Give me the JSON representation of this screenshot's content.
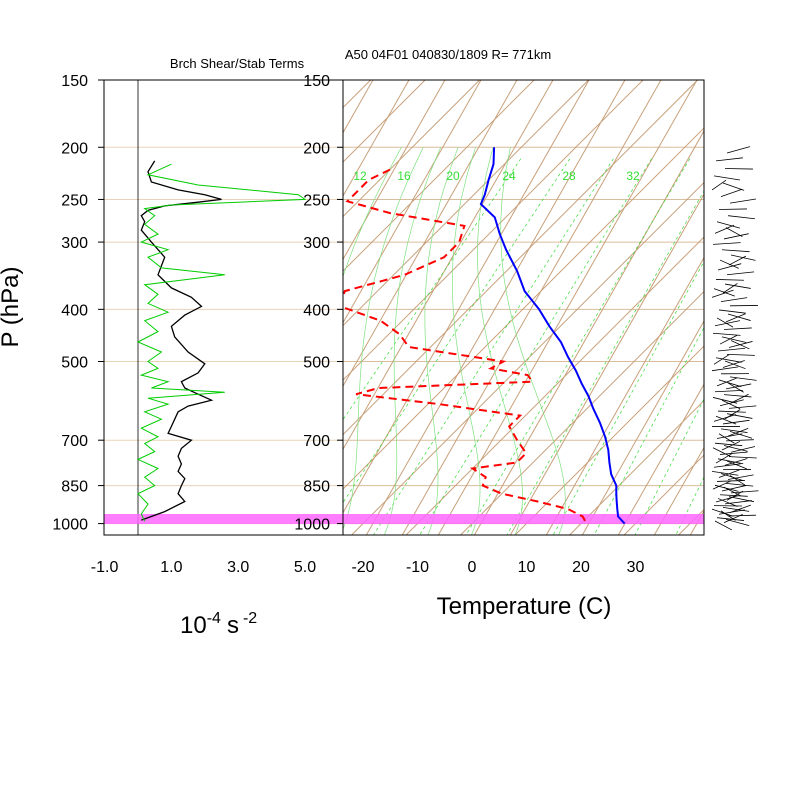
{
  "chart_data": [
    {
      "type": "line",
      "title": "Brch Shear/Stab Terms",
      "ylabel": "P (hPa)",
      "xlabel": "10-4 s -2",
      "xlabel_base": "10",
      "xlabel_exp1": "-4",
      "xlabel_unit": "s",
      "xlabel_exp2": "-2",
      "x_tick_labels": [
        "-1.0",
        "1.0",
        "3.0",
        "5.0"
      ],
      "pressure_labels": [
        "150",
        "200",
        "250",
        "300",
        "400",
        "500",
        "700",
        "850",
        "1000"
      ],
      "pressure_levels": [
        150,
        200,
        250,
        300,
        400,
        500,
        700,
        850,
        1000
      ],
      "xlim": [
        -1,
        5
      ],
      "zero_line": 0,
      "series": [
        {
          "color": "#000000",
          "p": [
            212,
            222,
            232,
            240,
            245,
            250,
            253,
            257,
            262,
            268,
            275,
            285,
            300,
            320,
            345,
            365,
            380,
            395,
            410,
            430,
            450,
            480,
            505,
            525,
            545,
            560,
            575,
            590,
            605,
            620,
            640,
            660,
            680,
            700,
            725,
            750,
            775,
            800,
            825,
            850,
            880,
            910,
            950,
            985
          ],
          "values": [
            0.5,
            0.3,
            0.4,
            1.2,
            2.0,
            2.5,
            1.8,
            0.8,
            0.3,
            0.1,
            0.2,
            0.1,
            0.4,
            0.8,
            0.6,
            1.0,
            1.6,
            1.9,
            1.4,
            1.0,
            1.1,
            1.5,
            2.0,
            1.8,
            1.3,
            1.4,
            1.8,
            2.2,
            1.5,
            1.2,
            1.1,
            1.0,
            0.9,
            1.6,
            1.3,
            1.2,
            1.3,
            1.2,
            1.4,
            1.3,
            1.2,
            1.4,
            0.8,
            0.1
          ]
        },
        {
          "color": "#00cc00",
          "p": [
            215,
            225,
            235,
            245,
            250,
            253,
            256,
            260,
            268,
            278,
            290,
            300,
            310,
            320,
            335,
            345,
            360,
            375,
            390,
            405,
            420,
            440,
            460,
            480,
            500,
            515,
            530,
            545,
            560,
            570,
            585,
            600,
            620,
            640,
            665,
            690,
            710,
            735,
            760,
            790,
            820,
            850,
            880,
            920,
            960,
            990
          ],
          "values": [
            1.0,
            0.3,
            1.8,
            4.8,
            5.0,
            3.0,
            1.0,
            0.2,
            0.5,
            0.2,
            0.6,
            0.1,
            0.9,
            0.3,
            0.7,
            2.6,
            0.2,
            0.6,
            0.3,
            0.9,
            0.2,
            0.6,
            0.0,
            0.7,
            0.3,
            0.6,
            0.1,
            0.9,
            0.4,
            2.6,
            0.3,
            0.9,
            0.2,
            0.7,
            0.1,
            0.6,
            0.2,
            0.5,
            0.0,
            0.6,
            0.2,
            0.5,
            0.0,
            0.3,
            0.1,
            0.2
          ]
        }
      ],
      "grid": true
    },
    {
      "type": "line",
      "title": "A50 04F01 040830/1809 R= 771km",
      "xlabel": "Temperature (C)",
      "x_tick_labels": [
        "-20",
        "-10",
        "0",
        "10",
        "20",
        "30"
      ],
      "pressure_labels": [
        "150",
        "200",
        "250",
        "300",
        "400",
        "500",
        "700",
        "850",
        "1000"
      ],
      "xlim_at_1000hPa": [
        -23,
        42
      ],
      "skew": "skew-T log-p",
      "mixing_ratio_labels": [
        "12",
        "16",
        "20",
        "24",
        "28",
        "32"
      ],
      "mixing_ratio_color": "#33dd33",
      "background_color": "#c8a07a",
      "highlight_band": {
        "p_range": [
          960,
          1020
        ],
        "color": "#ff66ff"
      },
      "series": [
        {
          "name_hidden": "temperature",
          "color": "#0000ff",
          "dash": "solid",
          "p": [
            200,
            215,
            230,
            245,
            255,
            270,
            290,
            310,
            340,
            370,
            400,
            430,
            460,
            490,
            520,
            550,
            580,
            610,
            650,
            690,
            730,
            770,
            810,
            850,
            880,
            910,
            940,
            970,
            1000
          ],
          "values": [
            -65,
            -62,
            -60,
            -58,
            -57,
            -52,
            -48,
            -44,
            -38,
            -33,
            -27,
            -22,
            -17,
            -13,
            -9,
            -5.5,
            -2,
            1,
            5,
            8.5,
            11.5,
            14,
            16.5,
            19.5,
            21,
            22.5,
            24,
            25.5,
            28
          ]
        },
        {
          "name_hidden": "dewpoint",
          "color": "#ff0000",
          "dash": "dashed",
          "p": [
            220,
            230,
            240,
            252,
            265,
            280,
            300,
            320,
            345,
            370,
            395,
            420,
            445,
            470,
            500,
            515,
            530,
            545,
            560,
            575,
            600,
            630,
            660,
            700,
            740,
            770,
            790,
            820,
            850,
            880,
            910,
            940,
            970,
            1000
          ],
          "values": [
            -80,
            -82,
            -82,
            -82,
            -72,
            -56,
            -54,
            -54,
            -58,
            -66,
            -64,
            -54,
            -48,
            -44,
            -24,
            -25,
            -17,
            -15,
            -42,
            -45,
            -28,
            -11,
            -11,
            -7,
            -3,
            -3,
            -10,
            -6,
            -5,
            0,
            8,
            15,
            19,
            21
          ]
        }
      ]
    }
  ]
}
